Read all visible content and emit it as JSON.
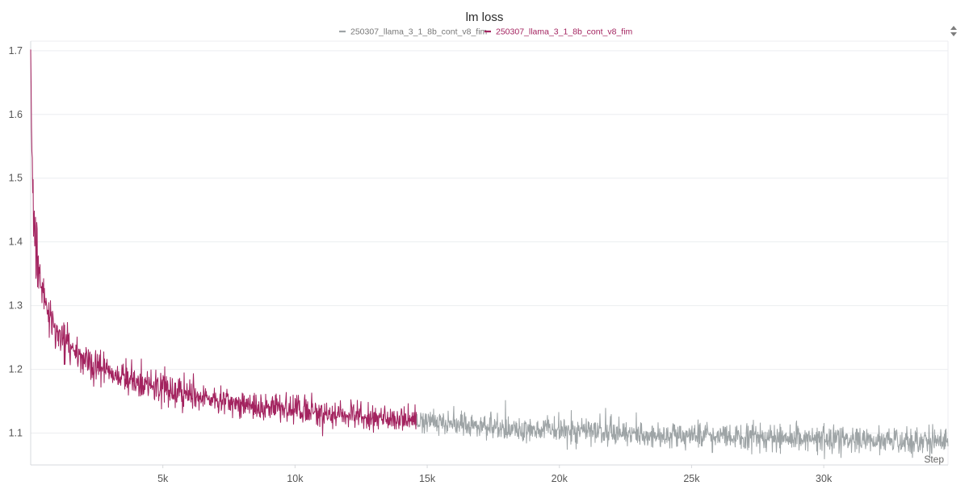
{
  "chart_data": {
    "type": "line",
    "title": "lm loss",
    "xlabel": "Step",
    "ylabel": "",
    "xlim": [
      0,
      34700
    ],
    "ylim": [
      1.05,
      1.715
    ],
    "x_ticks": [
      5000,
      10000,
      15000,
      20000,
      25000,
      30000
    ],
    "x_tick_labels": [
      "5k",
      "10k",
      "15k",
      "20k",
      "25k",
      "30k"
    ],
    "y_ticks": [
      1.1,
      1.2,
      1.3,
      1.4,
      1.5,
      1.6,
      1.7
    ],
    "y_tick_labels": [
      "1.1",
      "1.2",
      "1.3",
      "1.4",
      "1.5",
      "1.6",
      "1.7"
    ],
    "grid": true,
    "legend_position": "top-center",
    "series": [
      {
        "name": "250307_llama_3_1_8b_cont_v8_fim",
        "color": "#9ea4a6",
        "x": [
          14600,
          16000,
          18000,
          20000,
          22000,
          24000,
          26000,
          28000,
          30000,
          32000,
          34000,
          34700
        ],
        "y": [
          1.12,
          1.114,
          1.108,
          1.104,
          1.1,
          1.097,
          1.094,
          1.092,
          1.09,
          1.088,
          1.087,
          1.088
        ]
      },
      {
        "name": "250307_llama_3_1_8b_cont_v8_fim",
        "color": "#a3235f",
        "x": [
          0,
          50,
          100,
          200,
          300,
          500,
          800,
          1000,
          1500,
          2000,
          3000,
          4000,
          5000,
          6000,
          7000,
          8000,
          9000,
          10000,
          11000,
          12000,
          13000,
          14000,
          14600
        ],
        "y": [
          1.68,
          1.55,
          1.45,
          1.39,
          1.355,
          1.31,
          1.275,
          1.26,
          1.235,
          1.215,
          1.195,
          1.18,
          1.17,
          1.16,
          1.153,
          1.146,
          1.14,
          1.136,
          1.132,
          1.128,
          1.125,
          1.122,
          1.12
        ]
      }
    ]
  },
  "toolbar": {
    "sort_icon": "sort-updown-icon"
  }
}
